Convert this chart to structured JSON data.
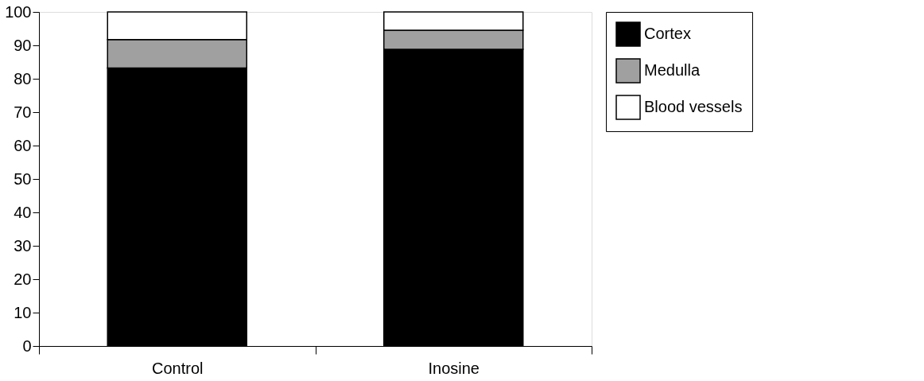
{
  "chart_data": {
    "type": "bar",
    "stacked": true,
    "categories": [
      "Control",
      "Inosine"
    ],
    "series": [
      {
        "name": "Cortex",
        "color": "#000000",
        "values": [
          83.2,
          88.8
        ]
      },
      {
        "name": "Medulla",
        "color": "#a0a0a0",
        "values": [
          8.5,
          5.7
        ]
      },
      {
        "name": "Blood vessels",
        "color": "#ffffff",
        "values": [
          8.3,
          5.5
        ]
      }
    ],
    "ylim": [
      0,
      100
    ],
    "yticks": [
      0,
      10,
      20,
      30,
      40,
      50,
      60,
      70,
      80,
      90,
      100
    ],
    "grid": false,
    "legend": "top right"
  }
}
